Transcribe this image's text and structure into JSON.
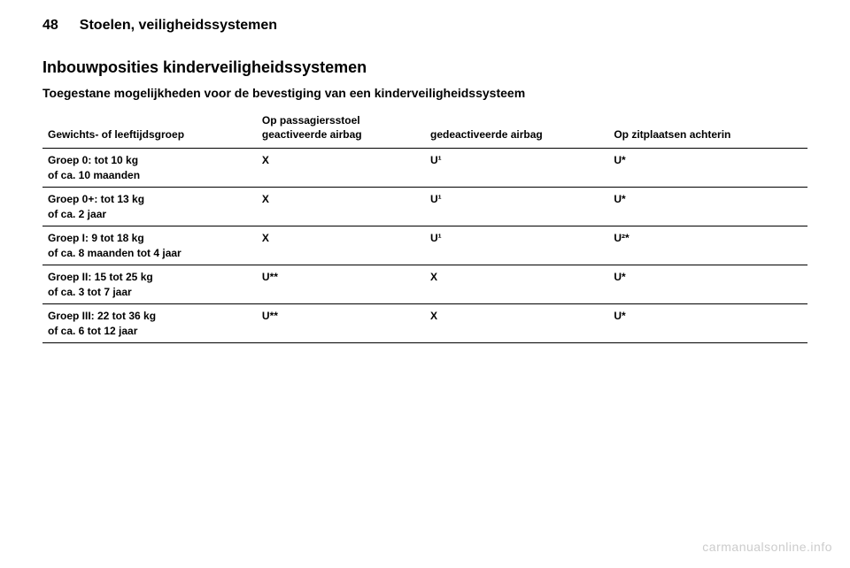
{
  "page_number": "48",
  "chapter_title": "Stoelen, veiligheidssystemen",
  "section_title": "Inbouwposities kinderveiligheidssystemen",
  "subtitle": "Toegestane mogelijkheden voor de bevestiging van een kinderveiligheidssysteem",
  "table": {
    "headers": {
      "col1": "Gewichts- of leeftijdsgroep",
      "col2_top": "Op passagiersstoel",
      "col2": "geactiveerde airbag",
      "col3": "gedeactiveerde airbag",
      "col4": "Op zitplaatsen achterin"
    },
    "rows": [
      {
        "group_main": "Groep 0: tot 10 kg",
        "group_sub": "of ca. 10 maanden",
        "c2": "X",
        "c3": "U¹",
        "c4": "U*"
      },
      {
        "group_main": "Groep 0+: tot 13 kg",
        "group_sub": "of ca. 2 jaar",
        "c2": "X",
        "c3": "U¹",
        "c4": "U*"
      },
      {
        "group_main": "Groep I: 9 tot 18 kg",
        "group_sub": "of ca. 8 maanden tot 4 jaar",
        "c2": "X",
        "c3": "U¹",
        "c4": "U²*"
      },
      {
        "group_main": "Groep II: 15 tot 25 kg",
        "group_sub": "of ca. 3 tot 7 jaar",
        "c2": "U**",
        "c3": "X",
        "c4": "U*"
      },
      {
        "group_main": "Groep III: 22 tot 36 kg",
        "group_sub": "of ca. 6 tot 12 jaar",
        "c2": "U**",
        "c3": "X",
        "c4": "U*"
      }
    ]
  },
  "watermark": "carmanualsonline.info",
  "styles": {
    "body_bg": "#ffffff",
    "text_color": "#000000",
    "border_color": "#000000",
    "watermark_color": "#cccccc",
    "page_number_fontsize": 16,
    "chapter_fontsize": 16,
    "section_title_fontsize": 18,
    "subtitle_fontsize": 14,
    "table_fontsize": 12
  }
}
